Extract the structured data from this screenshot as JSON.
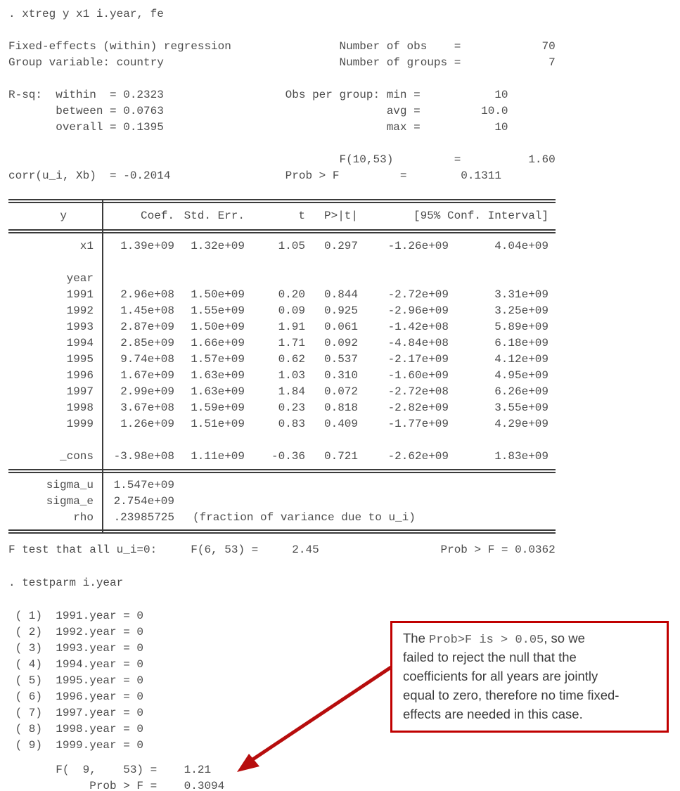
{
  "output": {
    "command": ". xtreg y x1 i.year, fe",
    "header_lines": [
      "Fixed-effects (within) regression                Number of obs    =            70",
      "Group variable: country                          Number of groups =             7",
      "",
      "R-sq:  within  = 0.2323                  Obs per group: min =           10",
      "       between = 0.0763                                 avg =         10.0",
      "       overall = 0.1395                                 max =           10",
      "",
      "                                                 F(10,53)         =          1.60",
      "corr(u_i, Xb)  = -0.2014                 Prob > F         =        0.1311"
    ],
    "table": {
      "depvar": "y",
      "columns": [
        "Coef.",
        "Std. Err.",
        "t",
        "P>|t|",
        "[95% Conf. Interval]"
      ],
      "rows": [
        {
          "label": "x1",
          "cells": [
            "1.39e+09",
            "1.32e+09",
            "1.05",
            "0.297",
            "-1.26e+09",
            "4.04e+09"
          ]
        },
        {
          "label": "",
          "cells": []
        },
        {
          "label": "year",
          "cells": []
        },
        {
          "label": "1991",
          "cells": [
            "2.96e+08",
            "1.50e+09",
            "0.20",
            "0.844",
            "-2.72e+09",
            "3.31e+09"
          ]
        },
        {
          "label": "1992",
          "cells": [
            "1.45e+08",
            "1.55e+09",
            "0.09",
            "0.925",
            "-2.96e+09",
            "3.25e+09"
          ]
        },
        {
          "label": "1993",
          "cells": [
            "2.87e+09",
            "1.50e+09",
            "1.91",
            "0.061",
            "-1.42e+08",
            "5.89e+09"
          ]
        },
        {
          "label": "1994",
          "cells": [
            "2.85e+09",
            "1.66e+09",
            "1.71",
            "0.092",
            "-4.84e+08",
            "6.18e+09"
          ]
        },
        {
          "label": "1995",
          "cells": [
            "9.74e+08",
            "1.57e+09",
            "0.62",
            "0.537",
            "-2.17e+09",
            "4.12e+09"
          ]
        },
        {
          "label": "1996",
          "cells": [
            "1.67e+09",
            "1.63e+09",
            "1.03",
            "0.310",
            "-1.60e+09",
            "4.95e+09"
          ]
        },
        {
          "label": "1997",
          "cells": [
            "2.99e+09",
            "1.63e+09",
            "1.84",
            "0.072",
            "-2.72e+08",
            "6.26e+09"
          ]
        },
        {
          "label": "1998",
          "cells": [
            "3.67e+08",
            "1.59e+09",
            "0.23",
            "0.818",
            "-2.82e+09",
            "3.55e+09"
          ]
        },
        {
          "label": "1999",
          "cells": [
            "1.26e+09",
            "1.51e+09",
            "0.83",
            "0.409",
            "-1.77e+09",
            "4.29e+09"
          ]
        },
        {
          "label": "",
          "cells": []
        },
        {
          "label": "_cons",
          "cells": [
            "-3.98e+08",
            "1.11e+09",
            "-0.36",
            "0.721",
            "-2.62e+09",
            "1.83e+09"
          ]
        }
      ],
      "stats": [
        {
          "label": "sigma_u",
          "value": "1.547e+09",
          "note": ""
        },
        {
          "label": "sigma_e",
          "value": "2.754e+09",
          "note": ""
        },
        {
          "label": "rho",
          "value": ".23985725",
          "note": "(fraction of variance due to u_i)"
        }
      ]
    },
    "ftest_line": "F test that all u_i=0:     F(6, 53) =     2.45                  Prob > F = 0.0362",
    "testparm_command": ". testparm i.year",
    "constraints": [
      " ( 1)  1991.year = 0",
      " ( 2)  1992.year = 0",
      " ( 3)  1993.year = 0",
      " ( 4)  1994.year = 0",
      " ( 5)  1995.year = 0",
      " ( 6)  1996.year = 0",
      " ( 7)  1997.year = 0",
      " ( 8)  1998.year = 0",
      " ( 9)  1999.year = 0"
    ],
    "result_lines": [
      "       F(  9,    53) =    1.21",
      "            Prob > F =    0.3094"
    ]
  },
  "callout": {
    "border_color": "#C00000",
    "arrow_color": "#B70D0D",
    "seg1": "The ",
    "seg2": "Prob>F is > 0.05",
    "seg3": ", so we",
    "line2": "failed to reject the null that the",
    "line3": "coefficients for all years are jointly",
    "line4": "equal to zero, therefore no time fixed-",
    "line5": "effects are needed in this case."
  }
}
